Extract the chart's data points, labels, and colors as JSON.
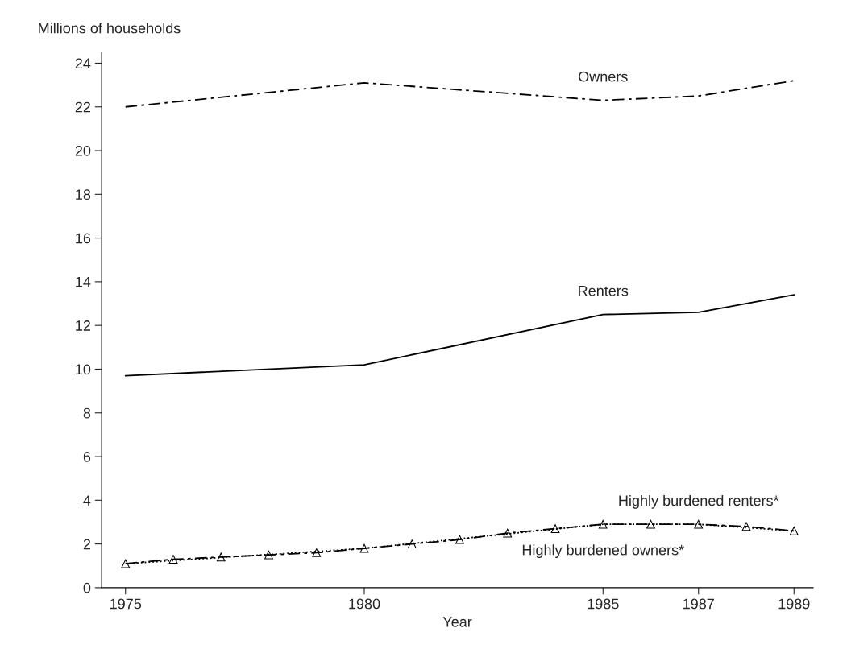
{
  "chart_data": {
    "type": "line",
    "ylabel": "Millions of households",
    "xlabel": "Year",
    "xlim": [
      1974.5,
      1989.4
    ],
    "xticks": [
      1975,
      1980,
      1985,
      1987,
      1989
    ],
    "ylim": [
      0,
      24.5
    ],
    "yticks": [
      0,
      2,
      4,
      6,
      8,
      10,
      12,
      14,
      16,
      18,
      20,
      22,
      24
    ],
    "grid": false,
    "legend": false,
    "series": [
      {
        "name": "Owners",
        "color": "#000000",
        "line_style": "dashed",
        "marker": "none",
        "x": [
          1975,
          1980,
          1985,
          1987,
          1989
        ],
        "values": [
          22.0,
          23.1,
          22.3,
          22.5,
          23.2
        ]
      },
      {
        "name": "Renters",
        "color": "#000000",
        "line_style": "solid",
        "marker": "none",
        "x": [
          1975,
          1980,
          1985,
          1987,
          1989
        ],
        "values": [
          9.7,
          10.2,
          12.5,
          12.6,
          13.4
        ]
      },
      {
        "name": "Highly burdened renters*",
        "color": "#000000",
        "line_style": "dashed",
        "marker": "triangle",
        "x": [
          1975,
          1976,
          1977,
          1978,
          1979,
          1980,
          1981,
          1982,
          1983,
          1984,
          1985,
          1986,
          1987,
          1988,
          1989
        ],
        "values": [
          1.1,
          1.3,
          1.4,
          1.5,
          1.6,
          1.8,
          2.0,
          2.2,
          2.5,
          2.7,
          2.9,
          2.9,
          2.9,
          2.8,
          2.6
        ]
      },
      {
        "name": "Highly burdened owners*",
        "color": "#000000",
        "line_style": "dotted",
        "marker": "none",
        "x": [
          1975,
          1980,
          1985,
          1987,
          1989
        ],
        "values": [
          1.1,
          1.8,
          2.9,
          2.9,
          2.6
        ]
      }
    ]
  }
}
